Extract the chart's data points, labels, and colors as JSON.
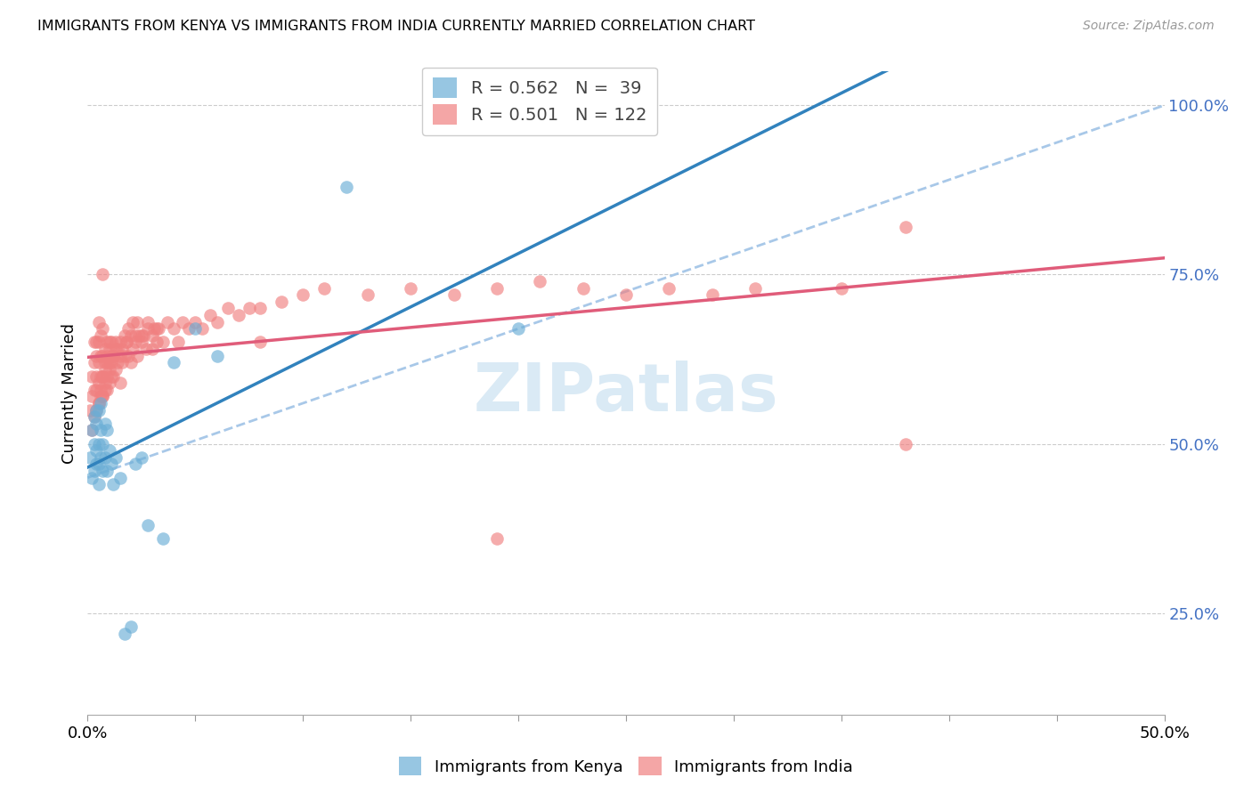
{
  "title": "IMMIGRANTS FROM KENYA VS IMMIGRANTS FROM INDIA CURRENTLY MARRIED CORRELATION CHART",
  "source": "Source: ZipAtlas.com",
  "xlim": [
    0.0,
    0.5
  ],
  "ylim": [
    0.1,
    1.05
  ],
  "ylabel": "Currently Married",
  "legend_kenya_R": "0.562",
  "legend_kenya_N": "39",
  "legend_india_R": "0.501",
  "legend_india_N": "122",
  "kenya_color": "#6baed6",
  "india_color": "#f08080",
  "trendline_kenya_color": "#3182bd",
  "trendline_india_color": "#e05c7a",
  "dashed_line_color": "#a8c8e8",
  "watermark_color": "#daeaf5",
  "right_tick_color": "#4472c4",
  "title_fontsize": 11.5,
  "source_fontsize": 10,
  "kenya_x": [
    0.001,
    0.002,
    0.002,
    0.003,
    0.003,
    0.003,
    0.004,
    0.004,
    0.004,
    0.004,
    0.005,
    0.005,
    0.005,
    0.005,
    0.006,
    0.006,
    0.006,
    0.007,
    0.007,
    0.008,
    0.008,
    0.009,
    0.009,
    0.01,
    0.011,
    0.012,
    0.013,
    0.015,
    0.017,
    0.02,
    0.022,
    0.025,
    0.028,
    0.035,
    0.04,
    0.05,
    0.06,
    0.12,
    0.2
  ],
  "kenya_y": [
    0.48,
    0.45,
    0.52,
    0.46,
    0.5,
    0.54,
    0.47,
    0.49,
    0.53,
    0.55,
    0.47,
    0.5,
    0.44,
    0.55,
    0.48,
    0.52,
    0.56,
    0.46,
    0.5,
    0.48,
    0.53,
    0.46,
    0.52,
    0.49,
    0.47,
    0.44,
    0.48,
    0.45,
    0.22,
    0.23,
    0.47,
    0.48,
    0.38,
    0.36,
    0.62,
    0.67,
    0.63,
    0.88,
    0.67
  ],
  "india_x": [
    0.001,
    0.002,
    0.002,
    0.002,
    0.003,
    0.003,
    0.003,
    0.003,
    0.004,
    0.004,
    0.004,
    0.004,
    0.004,
    0.005,
    0.005,
    0.005,
    0.005,
    0.005,
    0.006,
    0.006,
    0.006,
    0.006,
    0.007,
    0.007,
    0.007,
    0.007,
    0.008,
    0.008,
    0.008,
    0.009,
    0.009,
    0.009,
    0.01,
    0.01,
    0.01,
    0.011,
    0.011,
    0.012,
    0.012,
    0.013,
    0.013,
    0.014,
    0.015,
    0.015,
    0.016,
    0.017,
    0.018,
    0.019,
    0.02,
    0.021,
    0.022,
    0.023,
    0.024,
    0.025,
    0.026,
    0.027,
    0.028,
    0.03,
    0.031,
    0.032,
    0.033,
    0.035,
    0.037,
    0.04,
    0.042,
    0.044,
    0.047,
    0.05,
    0.053,
    0.057,
    0.06,
    0.065,
    0.07,
    0.075,
    0.08,
    0.09,
    0.1,
    0.11,
    0.13,
    0.15,
    0.17,
    0.19,
    0.21,
    0.23,
    0.25,
    0.27,
    0.29,
    0.31,
    0.35,
    0.38,
    0.005,
    0.006,
    0.007,
    0.007,
    0.008,
    0.008,
    0.009,
    0.009,
    0.01,
    0.01,
    0.011,
    0.011,
    0.012,
    0.013,
    0.014,
    0.015,
    0.016,
    0.017,
    0.018,
    0.019,
    0.02,
    0.021,
    0.022,
    0.023,
    0.025,
    0.028,
    0.03,
    0.032,
    0.19,
    0.38,
    0.007,
    0.08
  ],
  "india_y": [
    0.55,
    0.52,
    0.57,
    0.6,
    0.54,
    0.58,
    0.62,
    0.65,
    0.55,
    0.58,
    0.6,
    0.63,
    0.65,
    0.56,
    0.59,
    0.62,
    0.65,
    0.68,
    0.57,
    0.6,
    0.63,
    0.66,
    0.57,
    0.6,
    0.63,
    0.67,
    0.58,
    0.61,
    0.64,
    0.58,
    0.62,
    0.65,
    0.59,
    0.62,
    0.65,
    0.6,
    0.63,
    0.6,
    0.63,
    0.61,
    0.64,
    0.62,
    0.59,
    0.63,
    0.62,
    0.63,
    0.65,
    0.63,
    0.62,
    0.64,
    0.65,
    0.63,
    0.66,
    0.65,
    0.66,
    0.64,
    0.67,
    0.64,
    0.67,
    0.65,
    0.67,
    0.65,
    0.68,
    0.67,
    0.65,
    0.68,
    0.67,
    0.68,
    0.67,
    0.69,
    0.68,
    0.7,
    0.69,
    0.7,
    0.7,
    0.71,
    0.72,
    0.73,
    0.72,
    0.73,
    0.72,
    0.73,
    0.74,
    0.73,
    0.72,
    0.73,
    0.72,
    0.73,
    0.73,
    0.82,
    0.56,
    0.58,
    0.57,
    0.6,
    0.59,
    0.62,
    0.6,
    0.63,
    0.61,
    0.64,
    0.62,
    0.65,
    0.63,
    0.65,
    0.64,
    0.65,
    0.64,
    0.66,
    0.65,
    0.67,
    0.66,
    0.68,
    0.66,
    0.68,
    0.66,
    0.68,
    0.66,
    0.67,
    0.36,
    0.5,
    0.75,
    0.65
  ]
}
